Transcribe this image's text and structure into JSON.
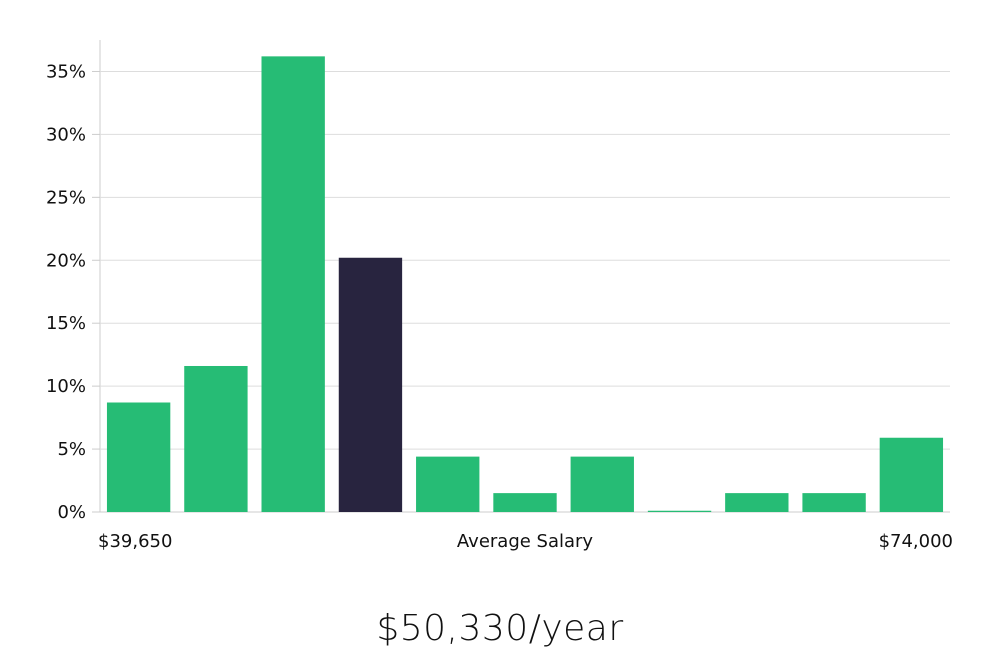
{
  "chart_data": {
    "type": "bar",
    "title": "",
    "xlabel": "Average Salary",
    "ylabel": "",
    "x_min_label": "$39,650",
    "x_max_label": "$74,000",
    "ylim": [
      0,
      37.5
    ],
    "yticks": [
      0,
      5,
      10,
      15,
      20,
      25,
      30,
      35
    ],
    "ytick_labels": [
      "0%",
      "5%",
      "10%",
      "15%",
      "20%",
      "25%",
      "30%",
      "35%"
    ],
    "grid": true,
    "values": [
      8.7,
      11.6,
      36.2,
      20.2,
      4.4,
      1.5,
      4.4,
      0.1,
      1.5,
      1.5,
      5.9
    ],
    "highlight_index": 3
  },
  "colors": {
    "bar": "#26bc75",
    "highlight": "#28243f",
    "grid": "#dddddd",
    "axis": "#cccccc"
  },
  "salary": {
    "value": "$50,330/year"
  }
}
